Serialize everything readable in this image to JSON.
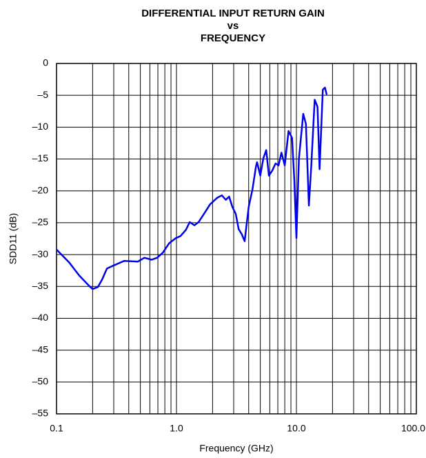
{
  "chart_data": {
    "type": "line",
    "title_lines": [
      "DIFFERENTIAL INPUT RETURN GAIN",
      "vs",
      "FREQUENCY"
    ],
    "x_label": "Frequency (GHz)",
    "y_label": "SDD11 (dB)",
    "xscale": "log",
    "grid": true,
    "xlim": [
      0.1,
      100
    ],
    "ylim": [
      -55,
      0
    ],
    "xticks": [
      0.1,
      {
        "value": 1,
        "label": "1.0"
      },
      {
        "value": 10,
        "label": "10.0"
      },
      {
        "value": 100,
        "label": "100.0"
      }
    ],
    "yticks": [
      0,
      {
        "value": -5,
        "label": "–5"
      },
      {
        "value": -10,
        "label": "–10"
      },
      {
        "value": -15,
        "label": "–15"
      },
      {
        "value": -20,
        "label": "–20"
      },
      {
        "value": -25,
        "label": "–25"
      },
      {
        "value": -30,
        "label": "–30"
      },
      {
        "value": -35,
        "label": "–35"
      },
      {
        "value": -40,
        "label": "–40"
      },
      {
        "value": -45,
        "label": "–45"
      },
      {
        "value": -50,
        "label": "–50"
      },
      {
        "value": -55,
        "label": "–55"
      }
    ],
    "x": [
      0.1,
      0.127,
      0.155,
      0.189,
      0.2,
      0.221,
      0.24,
      0.263,
      0.3,
      0.366,
      0.476,
      0.54,
      0.62,
      0.69,
      0.77,
      0.87,
      0.99,
      1.08,
      1.2,
      1.29,
      1.41,
      1.53,
      1.67,
      1.91,
      2.18,
      2.39,
      2.58,
      2.75,
      2.92,
      3.12,
      3.3,
      3.5,
      3.7,
      4.0,
      4.3,
      4.6,
      4.7,
      5.0,
      5.3,
      5.6,
      5.9,
      6.3,
      6.7,
      7.1,
      7.5,
      8.0,
      8.6,
      9.2,
      9.6,
      10.0,
      10.5,
      11.4,
      12.0,
      12.7,
      13.3,
      14.2,
      15.0,
      15.6,
      16.6,
      17.3,
      17.9
    ],
    "series": [
      {
        "name": "SDD11",
        "color": "#0000ee",
        "values": [
          -29.2,
          -31.2,
          -33.3,
          -35.0,
          -35.4,
          -35.1,
          -33.9,
          -32.2,
          -31.7,
          -31.0,
          -31.1,
          -30.5,
          -30.8,
          -30.5,
          -29.7,
          -28.2,
          -27.4,
          -27.1,
          -26.1,
          -24.9,
          -25.4,
          -24.9,
          -23.8,
          -22.1,
          -21.1,
          -20.7,
          -21.4,
          -20.9,
          -22.5,
          -23.6,
          -26.0,
          -26.8,
          -27.9,
          -22.5,
          -19.8,
          -16.2,
          -15.5,
          -17.6,
          -14.9,
          -13.6,
          -17.6,
          -16.8,
          -15.7,
          -16.0,
          -14.0,
          -16.0,
          -10.6,
          -11.7,
          -18.2,
          -27.4,
          -14.9,
          -7.9,
          -9.5,
          -22.3,
          -16.0,
          -5.7,
          -6.8,
          -16.6,
          -4.1,
          -3.8,
          -4.9
        ]
      }
    ]
  }
}
